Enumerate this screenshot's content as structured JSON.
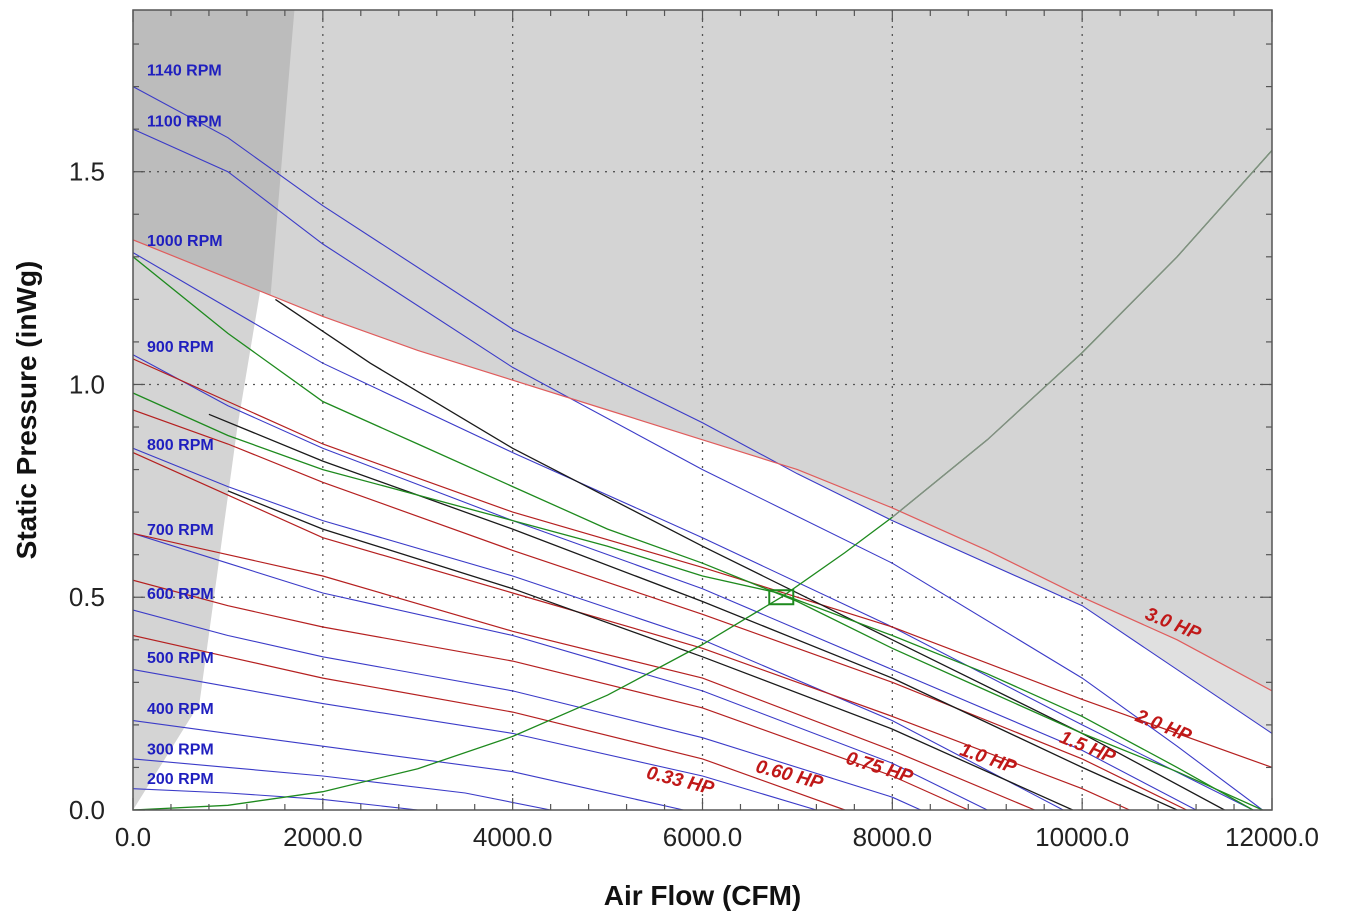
{
  "chart_data": {
    "type": "line",
    "title": "",
    "xlabel": "Air Flow (CFM)",
    "ylabel": "Static Pressure (inWg)",
    "xlim": [
      0,
      12000
    ],
    "ylim": [
      0,
      1.88
    ],
    "x_ticks": [
      0,
      2000,
      4000,
      6000,
      8000,
      10000,
      12000
    ],
    "x_tick_labels": [
      "0.0",
      "2000.0",
      "4000.0",
      "6000.0",
      "8000.0",
      "10000.0",
      "12000.0"
    ],
    "y_ticks": [
      0,
      0.5,
      1.0,
      1.5
    ],
    "y_tick_labels": [
      "0.0",
      "0.5",
      "1.0",
      "1.5"
    ],
    "grid": true,
    "colors": {
      "rpm": "#3b3bc8",
      "rpm_text": "#1f1fbf",
      "hp": "#b52020",
      "hp_text": "#c01818",
      "hp_faint": "#e05c5c",
      "system": "#1e8a1e",
      "black": "#1a1a1a",
      "shade": "#d4d4d4",
      "shade_dark": "#bcbcbc",
      "shade_light": "#e0e0e0"
    },
    "rpm_curves": [
      {
        "name": "1140 RPM",
        "label_y": 1.74,
        "points": [
          [
            0,
            1.7
          ],
          [
            1000,
            1.58
          ],
          [
            2000,
            1.42
          ],
          [
            4000,
            1.13
          ],
          [
            6000,
            0.91
          ],
          [
            7000,
            0.79
          ],
          [
            8000,
            0.68
          ],
          [
            10000,
            0.48
          ],
          [
            12000,
            0.18
          ]
        ]
      },
      {
        "name": "1100 RPM",
        "label_y": 1.62,
        "points": [
          [
            0,
            1.6
          ],
          [
            1000,
            1.5
          ],
          [
            2000,
            1.33
          ],
          [
            4000,
            1.04
          ],
          [
            6000,
            0.8
          ],
          [
            8000,
            0.58
          ],
          [
            10000,
            0.31
          ],
          [
            11000,
            0.15
          ],
          [
            11900,
            0.0
          ]
        ]
      },
      {
        "name": "1000 RPM",
        "label_y": 1.34,
        "points": [
          [
            0,
            1.31
          ],
          [
            1000,
            1.18
          ],
          [
            2000,
            1.05
          ],
          [
            4000,
            0.84
          ],
          [
            6000,
            0.64
          ],
          [
            8000,
            0.43
          ],
          [
            10000,
            0.2
          ],
          [
            11800,
            0.0
          ]
        ]
      },
      {
        "name": "900 RPM",
        "label_y": 1.09,
        "points": [
          [
            0,
            1.07
          ],
          [
            1000,
            0.95
          ],
          [
            2000,
            0.85
          ],
          [
            4000,
            0.68
          ],
          [
            6000,
            0.52
          ],
          [
            8000,
            0.33
          ],
          [
            10000,
            0.14
          ],
          [
            11200,
            0.0
          ]
        ]
      },
      {
        "name": "800 RPM",
        "label_y": 0.86,
        "points": [
          [
            0,
            0.85
          ],
          [
            1000,
            0.76
          ],
          [
            2000,
            0.68
          ],
          [
            4000,
            0.55
          ],
          [
            6000,
            0.4
          ],
          [
            8000,
            0.21
          ],
          [
            9800,
            0.0
          ]
        ]
      },
      {
        "name": "700 RPM",
        "label_y": 0.66,
        "points": [
          [
            0,
            0.65
          ],
          [
            1000,
            0.58
          ],
          [
            2000,
            0.51
          ],
          [
            4000,
            0.41
          ],
          [
            6000,
            0.28
          ],
          [
            8000,
            0.11
          ],
          [
            9000,
            0.0
          ]
        ]
      },
      {
        "name": "600 RPM",
        "label_y": 0.51,
        "points": [
          [
            0,
            0.47
          ],
          [
            1000,
            0.41
          ],
          [
            2000,
            0.36
          ],
          [
            4000,
            0.28
          ],
          [
            6000,
            0.17
          ],
          [
            8000,
            0.03
          ],
          [
            8300,
            0.0
          ]
        ]
      },
      {
        "name": "500 RPM",
        "label_y": 0.36,
        "points": [
          [
            0,
            0.33
          ],
          [
            1000,
            0.29
          ],
          [
            2000,
            0.25
          ],
          [
            4000,
            0.18
          ],
          [
            6000,
            0.08
          ],
          [
            7200,
            0.0
          ]
        ]
      },
      {
        "name": "400 RPM",
        "label_y": 0.24,
        "points": [
          [
            0,
            0.21
          ],
          [
            1000,
            0.18
          ],
          [
            2000,
            0.15
          ],
          [
            4000,
            0.09
          ],
          [
            5800,
            0.0
          ]
        ]
      },
      {
        "name": "300 RPM",
        "label_y": 0.145,
        "points": [
          [
            0,
            0.12
          ],
          [
            1000,
            0.1
          ],
          [
            2000,
            0.08
          ],
          [
            3500,
            0.04
          ],
          [
            4400,
            0.0
          ]
        ]
      },
      {
        "name": "200 RPM",
        "label_y": 0.075,
        "points": [
          [
            0,
            0.05
          ],
          [
            1000,
            0.04
          ],
          [
            2000,
            0.025
          ],
          [
            3000,
            0.0
          ]
        ]
      }
    ],
    "hp_curves": [
      {
        "name": "3.0 HP",
        "label": [
          10650,
          0.45
        ],
        "angle": 22,
        "faint": true,
        "points": [
          [
            0,
            1.34
          ],
          [
            1000,
            1.25
          ],
          [
            2000,
            1.16
          ],
          [
            3000,
            1.08
          ],
          [
            4000,
            1.01
          ],
          [
            5000,
            0.94
          ],
          [
            6000,
            0.87
          ],
          [
            7000,
            0.8
          ],
          [
            8000,
            0.71
          ],
          [
            9000,
            0.61
          ],
          [
            10000,
            0.5
          ],
          [
            11000,
            0.4
          ],
          [
            12000,
            0.28
          ]
        ]
      },
      {
        "name": "2.0 HP",
        "label": [
          10550,
          0.21
        ],
        "angle": 22,
        "points": [
          [
            0,
            1.06
          ],
          [
            1000,
            0.96
          ],
          [
            2000,
            0.86
          ],
          [
            4000,
            0.7
          ],
          [
            6000,
            0.57
          ],
          [
            8000,
            0.43
          ],
          [
            10000,
            0.26
          ],
          [
            12000,
            0.1
          ]
        ]
      },
      {
        "name": "1.5 HP",
        "label": [
          9750,
          0.16
        ],
        "angle": 22,
        "points": [
          [
            0,
            0.94
          ],
          [
            1000,
            0.86
          ],
          [
            2000,
            0.77
          ],
          [
            4000,
            0.61
          ],
          [
            6000,
            0.46
          ],
          [
            8000,
            0.3
          ],
          [
            10000,
            0.12
          ],
          [
            11100,
            0.0
          ]
        ]
      },
      {
        "name": "1.0 HP",
        "label": [
          8700,
          0.13
        ],
        "angle": 19,
        "points": [
          [
            0,
            0.84
          ],
          [
            1000,
            0.74
          ],
          [
            2000,
            0.64
          ],
          [
            4000,
            0.51
          ],
          [
            6000,
            0.38
          ],
          [
            8000,
            0.22
          ],
          [
            10000,
            0.05
          ],
          [
            10500,
            0.0
          ]
        ]
      },
      {
        "name": "0.75 HP",
        "label": [
          7500,
          0.11
        ],
        "angle": 17,
        "points": [
          [
            0,
            0.65
          ],
          [
            1000,
            0.6
          ],
          [
            2000,
            0.55
          ],
          [
            4000,
            0.42
          ],
          [
            6000,
            0.31
          ],
          [
            8000,
            0.14
          ],
          [
            9500,
            0.0
          ]
        ]
      },
      {
        "name": "0.60 HP",
        "label": [
          6550,
          0.09
        ],
        "angle": 15,
        "points": [
          [
            0,
            0.54
          ],
          [
            1000,
            0.48
          ],
          [
            2000,
            0.43
          ],
          [
            4000,
            0.35
          ],
          [
            6000,
            0.24
          ],
          [
            8000,
            0.08
          ],
          [
            8800,
            0.0
          ]
        ]
      },
      {
        "name": "0.33 HP",
        "label": [
          5400,
          0.075
        ],
        "angle": 14,
        "points": [
          [
            0,
            0.41
          ],
          [
            1000,
            0.36
          ],
          [
            2000,
            0.31
          ],
          [
            4000,
            0.23
          ],
          [
            6000,
            0.12
          ],
          [
            7500,
            0.0
          ]
        ]
      }
    ],
    "black_curves": [
      {
        "points": [
          [
            1500,
            1.2
          ],
          [
            2500,
            1.05
          ],
          [
            4000,
            0.85
          ],
          [
            6000,
            0.62
          ],
          [
            8000,
            0.4
          ],
          [
            10000,
            0.18
          ],
          [
            11500,
            0.0
          ]
        ]
      },
      {
        "points": [
          [
            800,
            0.93
          ],
          [
            2000,
            0.82
          ],
          [
            4000,
            0.66
          ],
          [
            6000,
            0.49
          ],
          [
            8000,
            0.31
          ],
          [
            10000,
            0.1
          ],
          [
            11000,
            0.0
          ]
        ]
      },
      {
        "points": [
          [
            1000,
            0.75
          ],
          [
            2000,
            0.66
          ],
          [
            4000,
            0.52
          ],
          [
            6000,
            0.36
          ],
          [
            8000,
            0.19
          ],
          [
            9900,
            0.0
          ]
        ]
      }
    ],
    "green_curves": [
      {
        "points": [
          [
            0,
            1.3
          ],
          [
            1000,
            1.12
          ],
          [
            2000,
            0.96
          ],
          [
            3000,
            0.86
          ],
          [
            4000,
            0.76
          ],
          [
            5000,
            0.66
          ],
          [
            6000,
            0.58
          ],
          [
            7000,
            0.49
          ],
          [
            8000,
            0.38
          ],
          [
            9000,
            0.28
          ],
          [
            10000,
            0.18
          ],
          [
            11000,
            0.09
          ],
          [
            11900,
            0.0
          ]
        ]
      },
      {
        "points": [
          [
            0,
            0.98
          ],
          [
            1000,
            0.88
          ],
          [
            2000,
            0.8
          ],
          [
            3000,
            0.74
          ],
          [
            4000,
            0.68
          ],
          [
            5000,
            0.62
          ],
          [
            6000,
            0.55
          ],
          [
            6800,
            0.51
          ],
          [
            8000,
            0.41
          ],
          [
            9000,
            0.32
          ],
          [
            10000,
            0.22
          ],
          [
            11000,
            0.1
          ],
          [
            11800,
            0.0
          ]
        ]
      }
    ],
    "system_curve": {
      "points": [
        [
          0,
          0.0
        ],
        [
          1000,
          0.011
        ],
        [
          2000,
          0.043
        ],
        [
          3000,
          0.097
        ],
        [
          4000,
          0.173
        ],
        [
          5000,
          0.27
        ],
        [
          6000,
          0.389
        ],
        [
          6830,
          0.5
        ],
        [
          7500,
          0.605
        ],
        [
          8000,
          0.688
        ],
        [
          9000,
          0.87
        ],
        [
          10000,
          1.075
        ],
        [
          11000,
          1.3
        ],
        [
          12000,
          1.55
        ]
      ]
    },
    "operating_point": {
      "x": 6830,
      "y": 0.5
    },
    "shaded_regions": {
      "left_boundary": [
        [
          0,
          0.0
        ],
        [
          700,
          0.25
        ],
        [
          1100,
          0.9
        ],
        [
          1400,
          1.3
        ],
        [
          1700,
          1.88
        ]
      ],
      "dark_corner_right_x": [
        [
          1.34,
          1450
        ],
        [
          1.88,
          1700
        ]
      ],
      "upper_boundary_hp": "3.0 HP",
      "right_rpm_boundary": "1140 RPM"
    }
  }
}
